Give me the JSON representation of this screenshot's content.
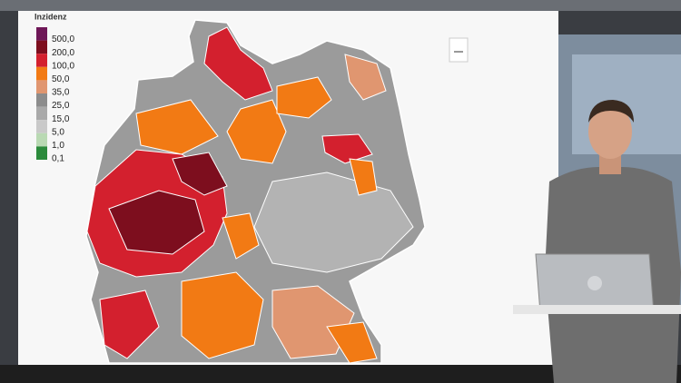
{
  "legend": {
    "title": "Inzidenz",
    "items": [
      {
        "label": "500,0",
        "color": "#6e1757"
      },
      {
        "label": "200,0",
        "color": "#7d0e1e"
      },
      {
        "label": "100,0",
        "color": "#d3202e"
      },
      {
        "label": "50,0",
        "color": "#f27a14"
      },
      {
        "label": "35,0",
        "color": "#e09670"
      },
      {
        "label": "25,0",
        "color": "#8c8c8c"
      },
      {
        "label": "15,0",
        "color": "#a9a9a9"
      },
      {
        "label": "5,0",
        "color": "#c9c9c9"
      },
      {
        "label": "1,0",
        "color": "#b9d9b3"
      },
      {
        "label": "0,1",
        "color": "#2b8a3b"
      }
    ]
  }
}
